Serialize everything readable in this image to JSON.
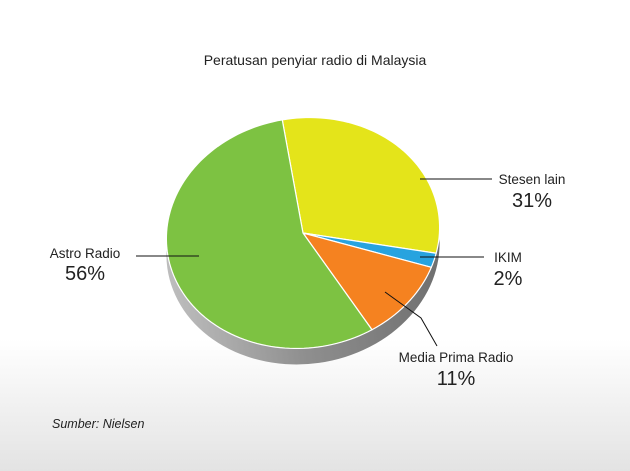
{
  "chart_data": {
    "type": "pie",
    "title": "Peratusan penyiar radio di Malaysia",
    "slices": [
      {
        "label": "Stesen lain",
        "value": 31,
        "display": "31%",
        "color": "#e4e41a"
      },
      {
        "label": "IKIM",
        "value": 2,
        "display": "2%",
        "color": "#27a3df"
      },
      {
        "label": "Media Prima Radio",
        "value": 11,
        "display": "11%",
        "color": "#f58220"
      },
      {
        "label": "Astro Radio",
        "value": 56,
        "display": "56%",
        "color": "#7dc242"
      }
    ],
    "source": "Sumber: Nielsen"
  }
}
